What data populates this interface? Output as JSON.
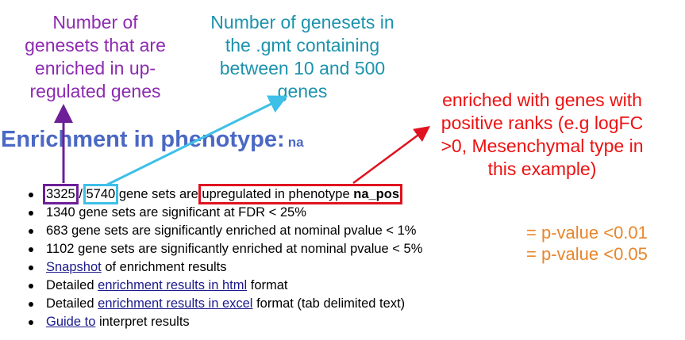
{
  "annotations": {
    "purple": "Number of\ngenesets that are\nenriched in up-\nregulated genes",
    "teal": "Number of genesets in\nthe .gmt containing\nbetween 10 and 500\ngenes",
    "red": "enriched with genes with\npositive ranks (e.g logFC\n>0, Mesenchymal type in\nthis example)"
  },
  "heading": {
    "title": "Enrichment in phenotype:",
    "phenotype": "na"
  },
  "summary": {
    "upregulated_count": "3325",
    "separator": "/",
    "total_count": "5740",
    "line1_mid": "gene sets are",
    "line1_boxed": "upregulated in phenotype",
    "line1_phenotype": "na_pos",
    "line2": "1340 gene sets are significant at FDR < 25%",
    "line3": "683 gene sets are significantly enriched at nominal pvalue < 1%",
    "line4": "1102 gene sets are significantly enriched at nominal pvalue < 5%",
    "line5_link": "Snapshot",
    "line5_rest": "of enrichment results",
    "line6_pre": "Detailed",
    "line6_link": "enrichment results in html",
    "line6_post": "format",
    "line7_pre": "Detailed",
    "line7_link": "enrichment results in excel",
    "line7_post": "format (tab delimited text)",
    "line8_link": "Guide to",
    "line8_rest": "interpret results"
  },
  "pvalue_notes": {
    "first": "= p-value <0.01",
    "second": "= p-value <0.05"
  },
  "colors": {
    "purple": "#8d2bb0",
    "teal": "#1c93ad",
    "red": "#ee1111",
    "heading": "#4a68c4",
    "orange": "#e8852b",
    "link": "#1a1a8c"
  }
}
